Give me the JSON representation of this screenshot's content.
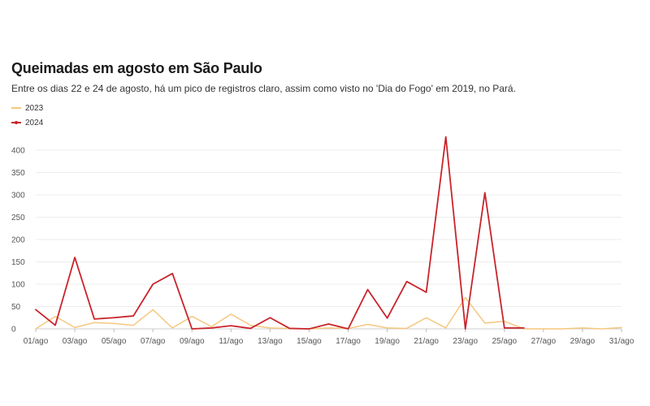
{
  "title": "Queimadas em agosto em São Paulo",
  "subtitle": "Entre os dias 22 e 24 de agosto, há um pico de registros claro, assim como visto no 'Dia do Fogo' em 2019, no Pará.",
  "legend": [
    {
      "label": "2023",
      "color": "#f5c77e"
    },
    {
      "label": "2024",
      "color": "#c9242b"
    }
  ],
  "chart_data": {
    "type": "line",
    "title": "Queimadas em agosto em São Paulo",
    "x": [
      "01/ago",
      "02/ago",
      "03/ago",
      "04/ago",
      "05/ago",
      "06/ago",
      "07/ago",
      "08/ago",
      "09/ago",
      "10/ago",
      "11/ago",
      "12/ago",
      "13/ago",
      "14/ago",
      "15/ago",
      "16/ago",
      "17/ago",
      "18/ago",
      "19/ago",
      "20/ago",
      "21/ago",
      "22/ago",
      "23/ago",
      "24/ago",
      "25/ago",
      "26/ago",
      "27/ago",
      "28/ago",
      "29/ago",
      "30/ago",
      "31/ago"
    ],
    "x_tick_labels": [
      "01/ago",
      "03/ago",
      "05/ago",
      "07/ago",
      "09/ago",
      "11/ago",
      "13/ago",
      "15/ago",
      "17/ago",
      "19/ago",
      "21/ago",
      "23/ago",
      "25/ago",
      "27/ago",
      "29/ago",
      "31/ago"
    ],
    "ylim": [
      0,
      400
    ],
    "y_ticks": [
      0,
      50,
      100,
      150,
      200,
      250,
      300,
      350,
      400
    ],
    "grid": true,
    "legend_position": "top-left",
    "series": [
      {
        "name": "2023",
        "color": "#f5c77e",
        "values": [
          0,
          28,
          3,
          14,
          12,
          8,
          43,
          2,
          28,
          5,
          33,
          8,
          2,
          1,
          0,
          2,
          1,
          10,
          2,
          1,
          25,
          2,
          70,
          13,
          17,
          0,
          0,
          0,
          2,
          0,
          3
        ]
      },
      {
        "name": "2024",
        "color": "#c9242b",
        "values": [
          43,
          8,
          160,
          22,
          25,
          29,
          100,
          124,
          0,
          2,
          7,
          1,
          25,
          1,
          0,
          11,
          0,
          88,
          24,
          106,
          82,
          430,
          0,
          305,
          2,
          2,
          null,
          null,
          null,
          null,
          null
        ]
      }
    ]
  }
}
